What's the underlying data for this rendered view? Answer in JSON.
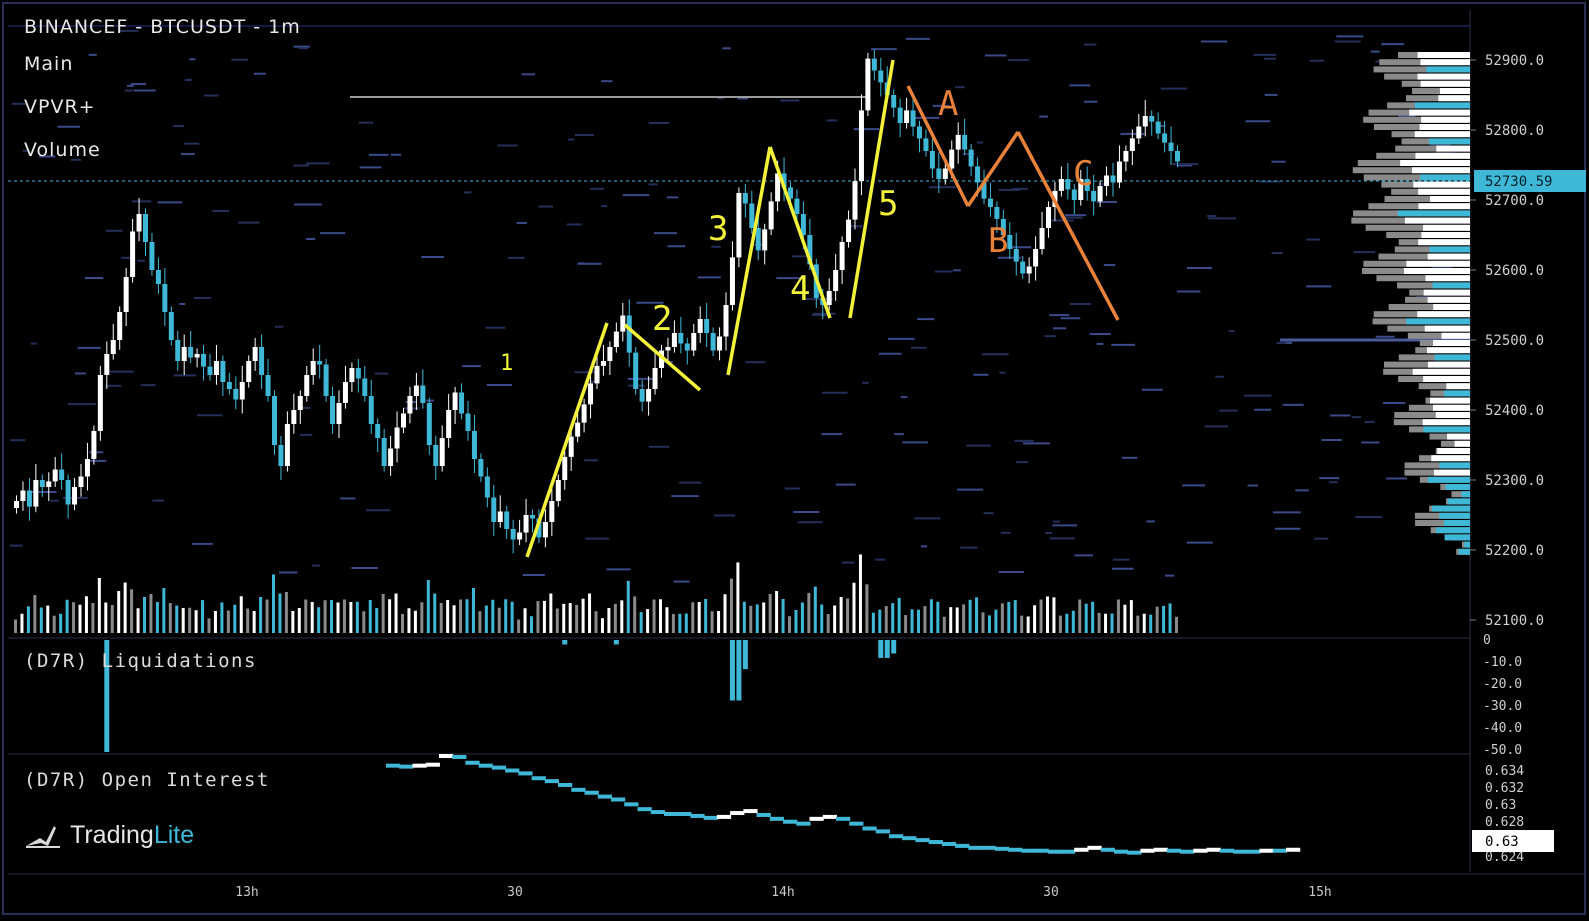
{
  "header": {
    "symbol_line": "BINANCEF - BTCUSDT - 1m",
    "layers": [
      "Main",
      "VPVR+",
      "Volume"
    ]
  },
  "panes": {
    "liquidations_title": "(D7R) Liquidations",
    "open_interest_title": "(D7R) Open Interest"
  },
  "brand": {
    "name_a": "Trading",
    "name_b": "Lite",
    "logo_icon": "tradinglite-logo-icon"
  },
  "colors": {
    "up": "#ffffff",
    "down": "#3fb8d8",
    "neutral": "#8a8a8a",
    "impulse": "#f2f23a",
    "correction": "#e8813a",
    "price_tag_bg": "#3fb8d8"
  },
  "price_axis": {
    "ticks": [
      "52900.0",
      "52800.0",
      "52700.0",
      "52600.0",
      "52500.0",
      "52400.0",
      "52300.0",
      "52200.0",
      "52100.0"
    ],
    "current_price": "52730.59",
    "range": [
      52075,
      52930
    ]
  },
  "time_axis": {
    "ticks": [
      "13h",
      "30",
      "14h",
      "30",
      "15h"
    ]
  },
  "liq_axis": {
    "ticks": [
      "0",
      "-10.0",
      "-20.0",
      "-30.0",
      "-40.0",
      "-50.0"
    ],
    "range": [
      -50,
      0
    ]
  },
  "oi_axis": {
    "ticks": [
      "0.634",
      "0.632",
      "0.63",
      "0.628",
      "0.624"
    ],
    "current": "0.63",
    "range": [
      0.6235,
      0.6355
    ]
  },
  "chart_data": {
    "type": "candlestick",
    "closes": [
      52270,
      52285,
      52262,
      52300,
      52290,
      52298,
      52315,
      52300,
      52265,
      52290,
      52305,
      52330,
      52370,
      52450,
      52480,
      52500,
      52540,
      52590,
      52655,
      52680,
      52640,
      52600,
      52580,
      52540,
      52500,
      52470,
      52490,
      52475,
      52480,
      52462,
      52450,
      52470,
      52440,
      52430,
      52415,
      52440,
      52470,
      52490,
      52450,
      52420,
      52350,
      52320,
      52380,
      52400,
      52420,
      52450,
      52470,
      52465,
      52420,
      52380,
      52410,
      52440,
      52460,
      52445,
      52420,
      52380,
      52360,
      52320,
      52345,
      52375,
      52395,
      52420,
      52435,
      52410,
      52350,
      52320,
      52360,
      52400,
      52425,
      52395,
      52370,
      52330,
      52305,
      52275,
      52240,
      52255,
      52230,
      52215,
      52225,
      52250,
      52245,
      52218,
      52240,
      52270,
      52300,
      52333,
      52362,
      52382,
      52408,
      52438,
      52463,
      52470,
      52490,
      52512,
      52535,
      52482,
      52430,
      52412,
      52430,
      52460,
      52485,
      52490,
      52510,
      52495,
      52485,
      52510,
      52530,
      52510,
      52485,
      52505,
      52550,
      52618,
      52710,
      52695,
      52660,
      52628,
      52658,
      52698,
      52738,
      52718,
      52702,
      52680,
      52650,
      52608,
      52560,
      52550,
      52570,
      52600,
      52640,
      52672,
      52727,
      52828,
      52902,
      52885,
      52868,
      52850,
      52832,
      52810,
      52828,
      52805,
      52788,
      52770,
      52745,
      52730,
      52745,
      52772,
      52793,
      52772,
      52748,
      52725,
      52702,
      52690,
      52673,
      52650,
      52630,
      52612,
      52595,
      52605,
      52630,
      52660,
      52690,
      52713,
      52730,
      52715,
      52700,
      52730,
      52713,
      52698,
      52720,
      52735,
      52725,
      52755,
      52770,
      52788,
      52805,
      52820,
      52812,
      52795,
      52782,
      52770,
      52755
    ],
    "open_interest": [
      0.6345,
      0.6344,
      0.6345,
      0.6346,
      0.6355,
      0.6354,
      0.6348,
      0.6345,
      0.6343,
      0.634,
      0.6337,
      0.6332,
      0.6329,
      0.6325,
      0.632,
      0.6317,
      0.6313,
      0.631,
      0.6305,
      0.63,
      0.6297,
      0.6295,
      0.6295,
      0.6293,
      0.6291,
      0.6292,
      0.6296,
      0.6298,
      0.6294,
      0.629,
      0.6287,
      0.6285,
      0.629,
      0.6292,
      0.629,
      0.6285,
      0.628,
      0.6277,
      0.6272,
      0.627,
      0.6268,
      0.6266,
      0.6264,
      0.6262,
      0.626,
      0.626,
      0.6259,
      0.6258,
      0.6257,
      0.6257,
      0.6256,
      0.6256,
      0.6258,
      0.626,
      0.6258,
      0.6256,
      0.6255,
      0.6257,
      0.6258,
      0.6257,
      0.6256,
      0.6257,
      0.6258,
      0.6257,
      0.6256,
      0.6256,
      0.6257,
      0.6257,
      0.6258
    ]
  },
  "annotations": {
    "impulse_labels": [
      "1",
      "2",
      "3",
      "4",
      "5"
    ],
    "correction_labels": [
      "A",
      "B",
      "C"
    ]
  }
}
